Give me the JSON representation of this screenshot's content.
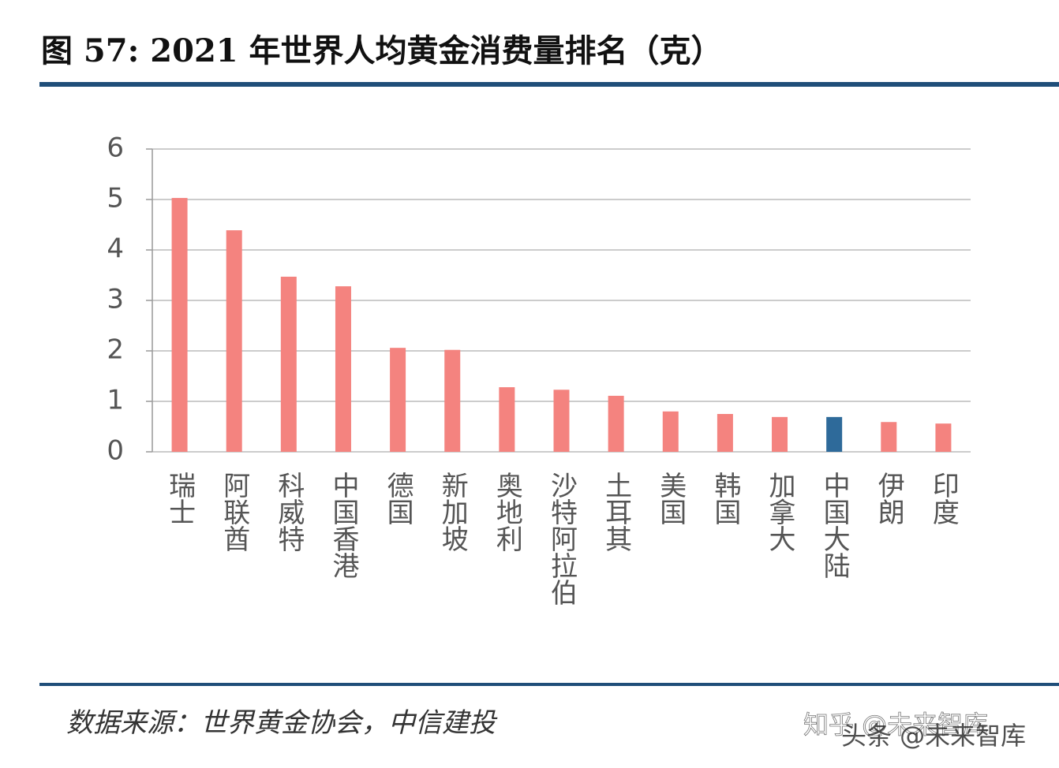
{
  "chart_data": {
    "type": "bar",
    "title": "图 57: 2021 年世界人均黄金消费量排名（克）",
    "source": "数据来源：世界黄金协会，中信建投",
    "watermarks": [
      "知乎 @未来智库",
      "头条 @未来智库"
    ],
    "categories": [
      "瑞士",
      "阿联酋",
      "科威特",
      "中国香港",
      "德国",
      "新加坡",
      "奥地利",
      "沙特阿拉伯",
      "土耳其",
      "美国",
      "韩国",
      "加拿大",
      "中国大陆",
      "伊朗",
      "印度"
    ],
    "values": [
      5.03,
      4.39,
      3.47,
      3.28,
      2.06,
      2.02,
      1.28,
      1.23,
      1.11,
      0.8,
      0.75,
      0.69,
      0.69,
      0.59,
      0.56
    ],
    "colors": [
      "#f4837f",
      "#f4837f",
      "#f4837f",
      "#f4837f",
      "#f4837f",
      "#f4837f",
      "#f4837f",
      "#f4837f",
      "#f4837f",
      "#f4837f",
      "#f4837f",
      "#f4837f",
      "#2e6a9a",
      "#f4837f",
      "#f4837f"
    ],
    "ylim": [
      0,
      6
    ],
    "yticks": [
      0,
      1,
      2,
      3,
      4,
      5,
      6
    ],
    "grid": true
  }
}
